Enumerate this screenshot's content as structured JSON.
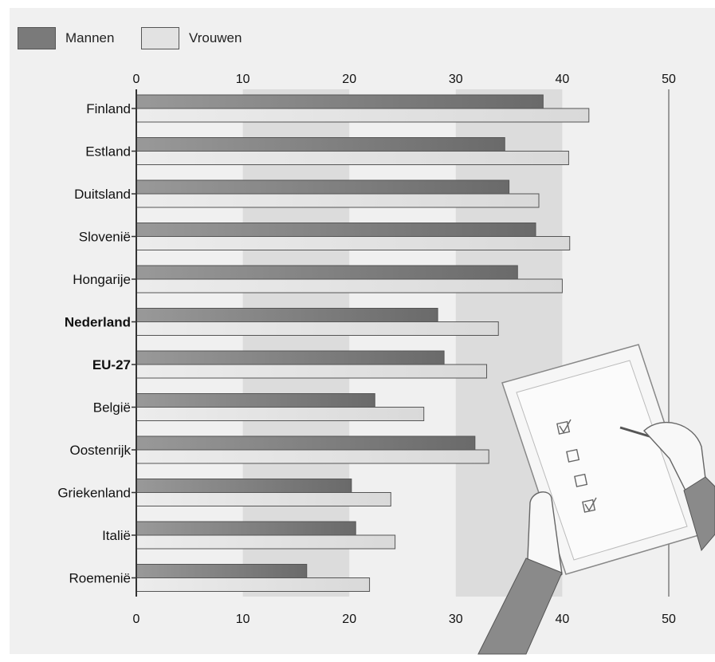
{
  "chart_data": {
    "type": "bar",
    "orientation": "horizontal",
    "title": "",
    "xlabel": "",
    "ylabel": "",
    "xlim": [
      0,
      50
    ],
    "xticks": [
      0,
      10,
      20,
      30,
      40,
      50
    ],
    "tick_labels": [
      "0",
      "10",
      "20",
      "30",
      "40",
      "50"
    ],
    "categories": [
      "Finland",
      "Estland",
      "Duitsland",
      "Slovenië",
      "Hongarije",
      "Nederland",
      "EU-27",
      "België",
      "Oostenrijk",
      "Griekenland",
      "Italië",
      "Roemenië"
    ],
    "bold_categories": [
      "Nederland",
      "EU-27"
    ],
    "series": [
      {
        "name": "Mannen",
        "color": "#7a7a7a",
        "values": [
          38.2,
          34.6,
          35.0,
          37.5,
          35.8,
          28.3,
          28.9,
          22.4,
          31.8,
          20.2,
          20.6,
          16.0
        ]
      },
      {
        "name": "Vrouwen",
        "color": "#e2e2e2",
        "values": [
          42.5,
          40.6,
          37.8,
          40.7,
          40.0,
          34.0,
          32.9,
          27.0,
          33.1,
          23.9,
          24.3,
          21.9
        ]
      }
    ],
    "shaded_bands": [
      [
        10,
        20
      ],
      [
        30,
        40
      ]
    ],
    "gridlines": [
      50
    ],
    "legend_position": "top-left",
    "grid": false
  },
  "legend": {
    "items": [
      {
        "label": "Mannen",
        "color": "#7a7a7a"
      },
      {
        "label": "Vrouwen",
        "color": "#e2e2e2"
      }
    ]
  },
  "colors": {
    "background": "#f0f0f0",
    "band": "#dcdcdc",
    "axis": "#333333"
  },
  "illustration": {
    "name": "clipboard-checklist-with-hands"
  }
}
